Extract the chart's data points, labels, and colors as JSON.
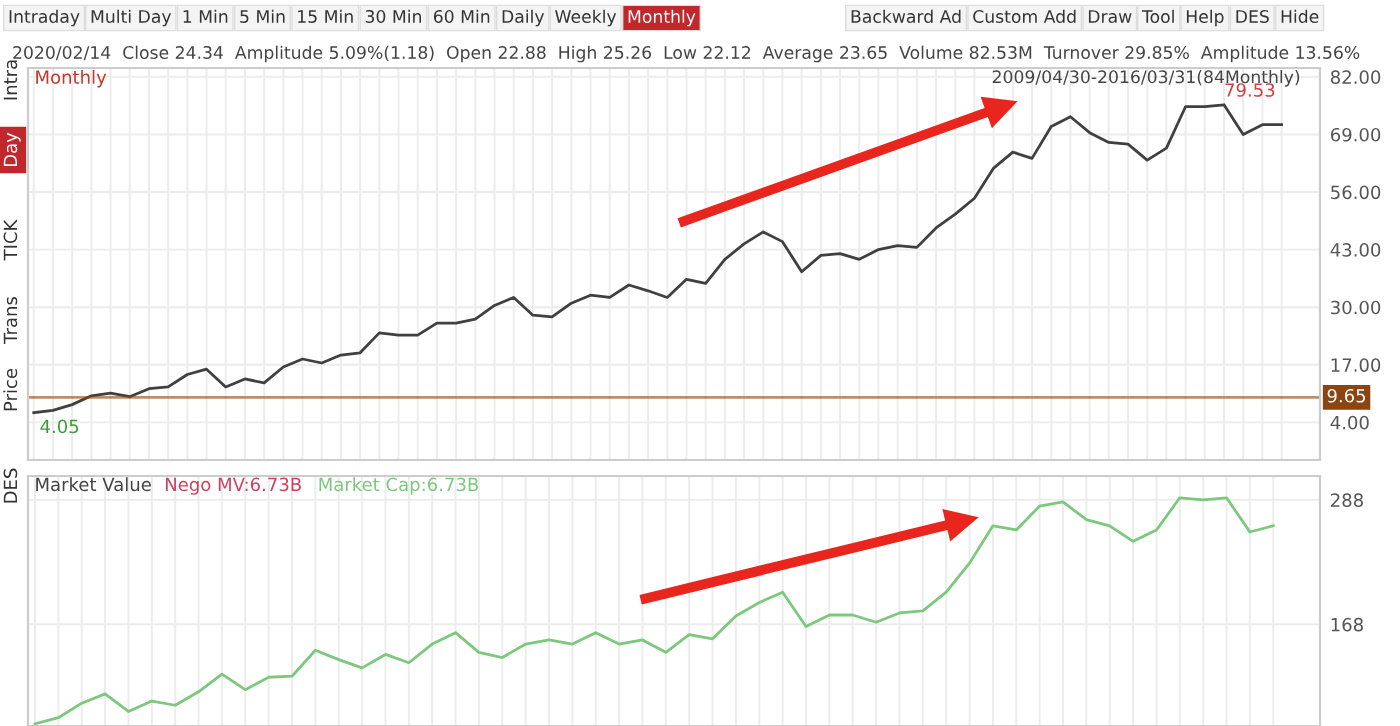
{
  "chart_data": [
    {
      "type": "line",
      "title": "Monthly",
      "subtitle": "2020/02/14  Close 24.34  Amplitude 5.09%(1.18)  Open 22.88  High 25.26  Low 22.12  Average 23.65  Volume 82.53M  Turnover 29.85%  Amplitude 13.56%",
      "annotations": [
        "Intraday",
        "Multi Day",
        "1 Min",
        "5 Min",
        "15 Min",
        "30 Min",
        "60 Min",
        "Daily",
        "Weekly",
        "Monthly",
        "Backward Ad",
        "Custom Add",
        "Draw",
        "Tool",
        "Help",
        "DES",
        "Hide",
        "2009/04/30-2016/03/31(84Monthly)",
        "79.53",
        "4.05",
        "Intra",
        "Day",
        "TICK",
        "Trans",
        "Price",
        "DES"
      ],
      "categories": [
        null,
        null,
        null,
        null,
        null,
        null,
        null,
        null,
        null,
        null,
        null,
        null,
        null,
        null,
        null,
        null,
        null,
        null,
        null,
        null,
        null,
        null,
        null,
        null,
        null,
        null,
        null,
        null,
        null,
        null,
        null,
        null,
        null,
        null,
        null,
        null,
        null,
        null,
        null,
        null,
        null,
        null,
        null,
        null,
        null,
        null,
        null,
        null,
        null,
        null,
        null,
        null,
        null,
        null,
        null,
        null,
        null,
        null,
        null,
        null,
        null,
        null,
        null,
        null,
        null,
        null
      ],
      "series": [
        {
          "color": "#404040",
          "values": [
            6.2,
            6.7,
            8,
            10,
            10.6,
            9.8,
            11.6,
            12,
            14.8,
            16,
            12,
            13.8,
            12.9,
            16.5,
            18.3,
            17.4,
            19.2,
            19.7,
            24.2,
            23.7,
            23.7,
            26.4,
            26.4,
            27.3,
            30.4,
            32.2,
            28.2,
            27.8,
            30.9,
            32.7,
            32.2,
            35,
            33.7,
            32.2,
            36.3,
            35.4,
            40.8,
            44.3,
            47,
            44.8,
            38,
            41.7,
            42.1,
            40.8,
            43,
            43.9,
            43.5,
            47.9,
            51,
            54.6,
            61.4,
            65,
            63.6,
            70.8,
            73,
            69.4,
            67.2,
            66.8,
            63.2,
            65.9,
            75.3,
            75.3,
            75.7,
            69,
            71.2,
            71.2
          ]
        }
      ],
      "ylim": [
        -4.5,
        84
      ],
      "yticks": [
        {
          "value": 82,
          "label": "82.00"
        },
        {
          "value": 69,
          "label": "69.00"
        },
        {
          "value": 56,
          "label": "56.00"
        },
        {
          "value": 43,
          "label": "43.00"
        },
        {
          "value": 30,
          "label": "30.00"
        },
        {
          "value": 17,
          "label": "17.00"
        },
        {
          "value": 4,
          "label": "4.00"
        }
      ],
      "ref_lines": [
        {
          "axis": "y",
          "value": 9.65,
          "label": "9.65",
          "color": "#8b4513"
        }
      ],
      "grid": true,
      "tick_labels": "y",
      "line_style": "solid",
      "marker": "none"
    },
    {
      "type": "line",
      "title": "Market Value",
      "legend": "top left",
      "categories": [
        null,
        null,
        null,
        null,
        null,
        null,
        null,
        null,
        null,
        null,
        null,
        null,
        null,
        null,
        null,
        null,
        null,
        null,
        null,
        null,
        null,
        null,
        null,
        null,
        null,
        null,
        null,
        null,
        null,
        null,
        null,
        null,
        null,
        null,
        null,
        null,
        null,
        null,
        null,
        null,
        null,
        null,
        null,
        null,
        null,
        null,
        null,
        null,
        null,
        null,
        null,
        null,
        null,
        null
      ],
      "series": [
        {
          "name": "Nego MV:6.73B",
          "color": "#d04060",
          "values": [
            null,
            null,
            null,
            null,
            null,
            null,
            null,
            null,
            null,
            null,
            null,
            null,
            null,
            null,
            null,
            null,
            null,
            null,
            null,
            null,
            null,
            null,
            null,
            null,
            null,
            null,
            null,
            null,
            null,
            null,
            null,
            null,
            null,
            null,
            null,
            null,
            null,
            null,
            null,
            null,
            null,
            null,
            null,
            null,
            null,
            null,
            null,
            null,
            null,
            null,
            null,
            null,
            null,
            null
          ]
        },
        {
          "name": "Market Cap:6.73B",
          "color": "#7cc87c",
          "values": [
            72,
            78,
            92,
            101,
            84,
            94,
            90,
            103,
            120,
            105,
            117,
            118,
            143,
            134,
            126,
            139,
            131,
            149,
            160,
            141,
            136,
            149,
            153,
            149,
            160,
            149,
            153,
            141,
            158,
            154,
            176,
            189,
            199,
            166,
            177,
            177,
            170,
            179,
            181,
            199,
            227,
            263,
            259,
            282,
            286,
            269,
            263,
            248,
            259,
            290,
            288,
            290,
            257,
            263
          ]
        }
      ],
      "ylim": [
        70,
        311
      ],
      "yticks": [
        288,
        168
      ],
      "grid": true,
      "tick_labels": "y",
      "line_style": "solid",
      "marker": "none"
    }
  ]
}
